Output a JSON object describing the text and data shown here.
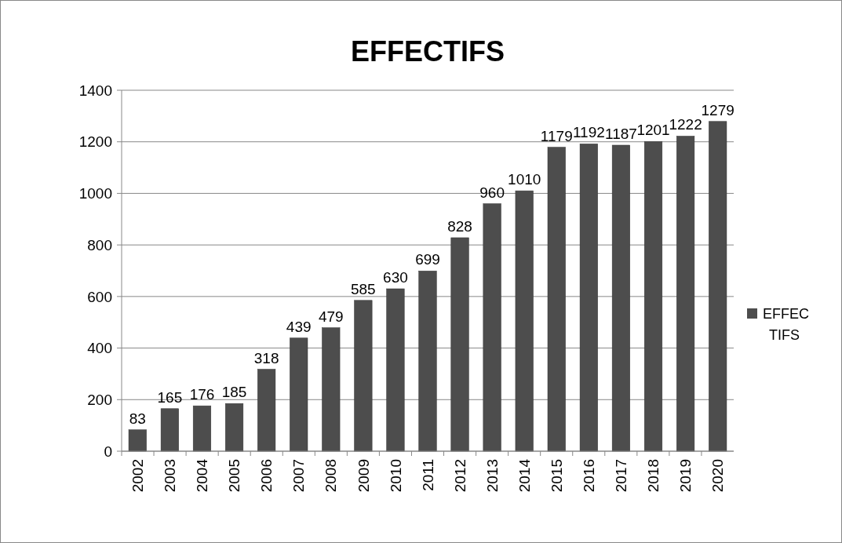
{
  "chart_data": {
    "type": "bar",
    "title": "EFFECTIFS",
    "categories": [
      "2002",
      "2003",
      "2004",
      "2005",
      "2006",
      "2007",
      "2008",
      "2009",
      "2010",
      "2011",
      "2012",
      "2013",
      "2014",
      "2015",
      "2016",
      "2017",
      "2018",
      "2019",
      "2020"
    ],
    "series": [
      {
        "name": "EFFECTIFS",
        "color": "#4d4d4d",
        "values": [
          83,
          165,
          176,
          185,
          318,
          439,
          479,
          585,
          630,
          699,
          828,
          960,
          1010,
          1179,
          1192,
          1187,
          1201,
          1222,
          1279
        ]
      }
    ],
    "ylim": [
      0,
      1400
    ],
    "yticks": [
      0,
      200,
      400,
      600,
      800,
      1000,
      1200,
      1400
    ],
    "grid": "y",
    "legend": "right",
    "data_labels": true
  }
}
